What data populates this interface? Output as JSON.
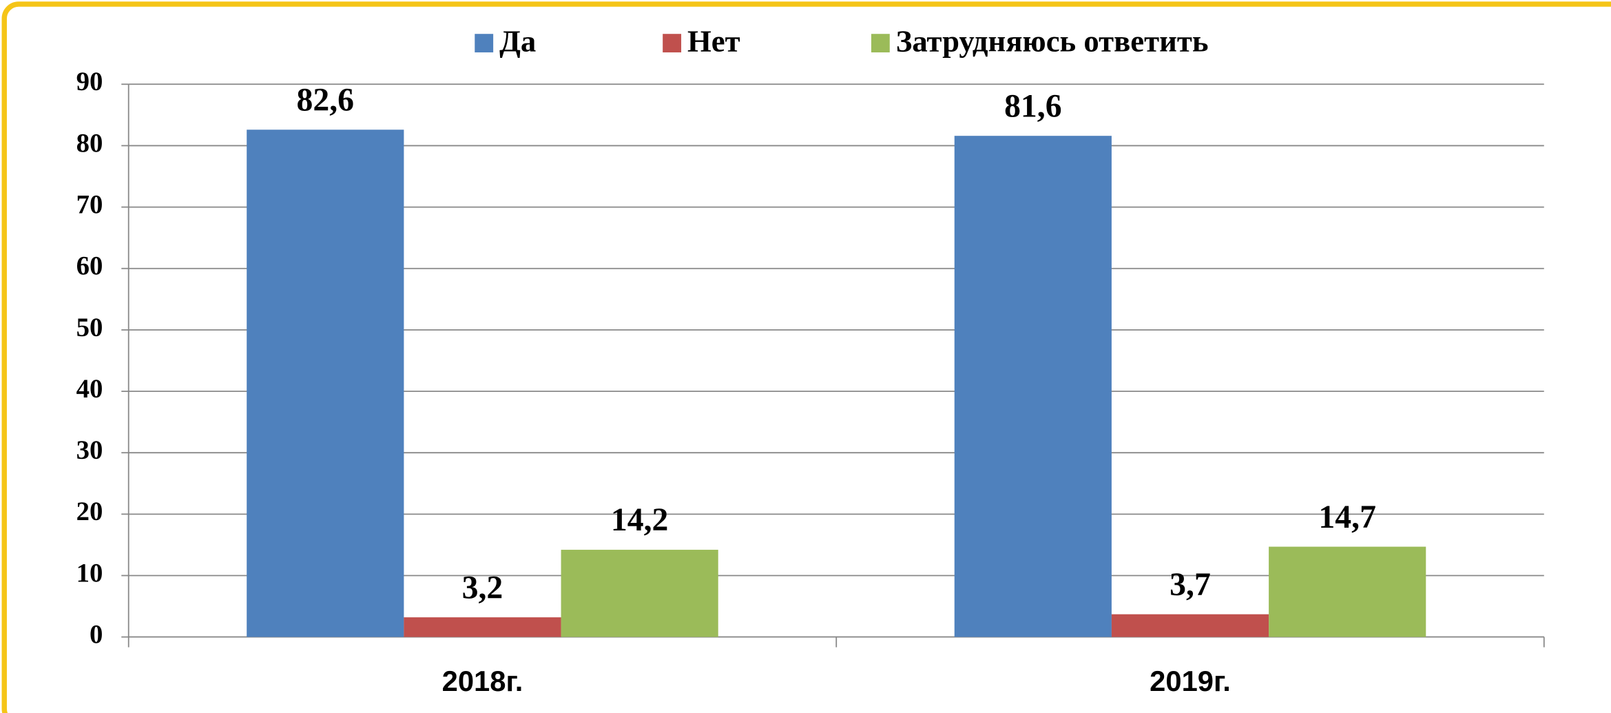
{
  "chart_data": {
    "type": "bar",
    "categories": [
      "2018г.",
      "2019г."
    ],
    "series": [
      {
        "name": "Да",
        "color": "#4f81bd",
        "values": [
          82.6,
          81.6
        ],
        "value_labels": [
          "82,6",
          "81,6"
        ]
      },
      {
        "name": "Нет",
        "color": "#c0504d",
        "values": [
          3.2,
          3.7
        ],
        "value_labels": [
          "3,2",
          "3,7"
        ]
      },
      {
        "name": "Затрудняюсь ответить",
        "color": "#9bbb59",
        "values": [
          14.2,
          14.7
        ],
        "value_labels": [
          "14,2",
          "14,7"
        ]
      }
    ],
    "ylim": [
      0,
      90
    ],
    "yticks": [
      0,
      10,
      20,
      30,
      40,
      50,
      60,
      70,
      80,
      90
    ],
    "grid": true,
    "legend": "top"
  }
}
